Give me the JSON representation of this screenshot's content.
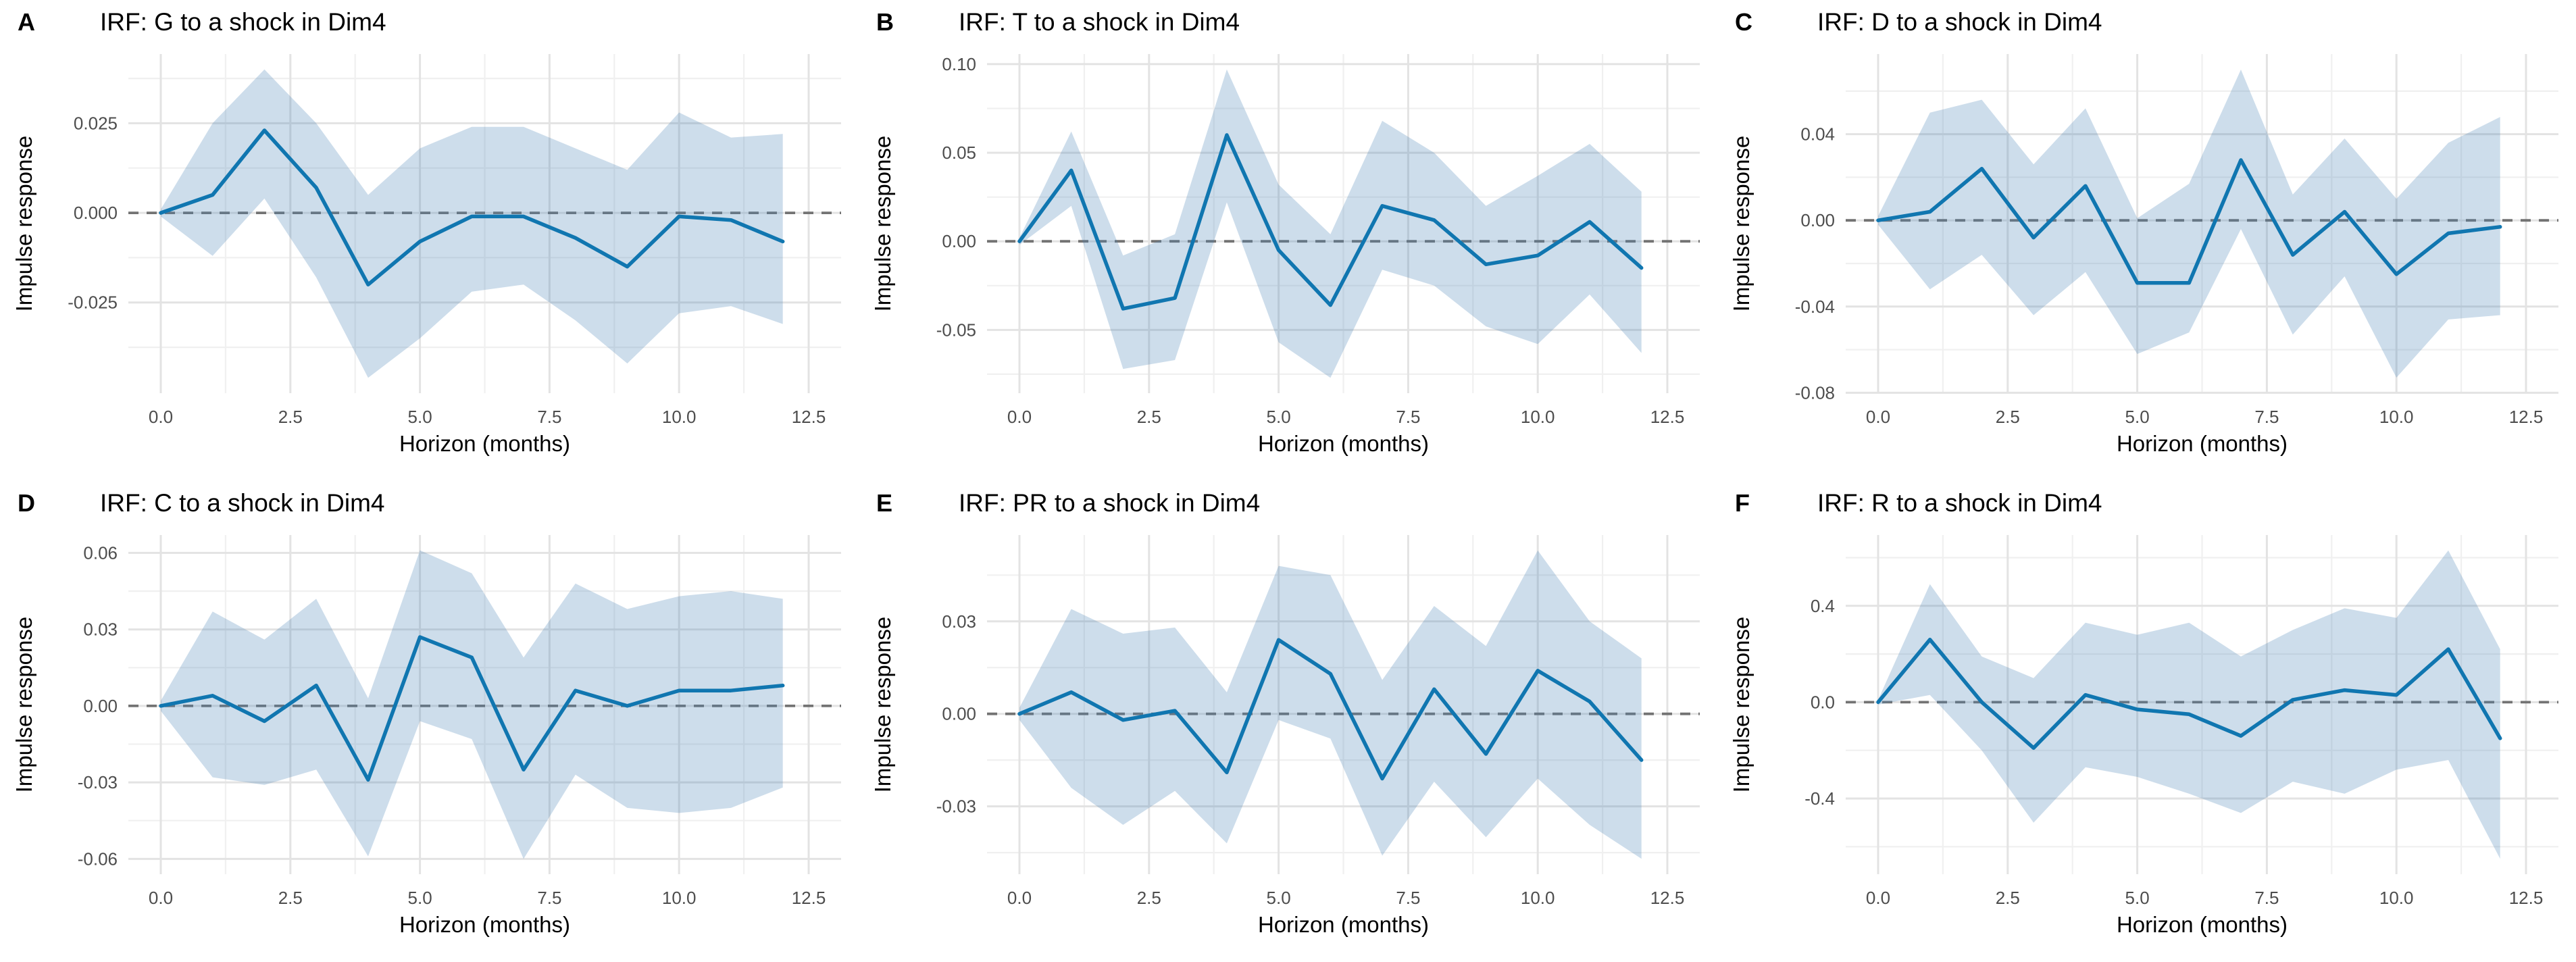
{
  "styles": {
    "line_color": "#1076b0",
    "band_fill": "rgba(70,130,180,0.27)",
    "zero_line_color": "#737373",
    "grid_major_color": "#e3e3e3",
    "grid_minor_color": "#f0f0f0",
    "tick_label_color": "#4d4d4d",
    "text_color": "#000000"
  },
  "chart_data": [
    {
      "letter": "A",
      "title": "IRF: G to a shock in Dim4",
      "type": "line",
      "xlabel": "Horizon (months)",
      "ylabel": "Impulse response",
      "x": [
        0,
        1,
        2,
        3,
        4,
        5,
        6,
        7,
        8,
        9,
        10,
        11,
        12
      ],
      "series": [
        {
          "name": "irf",
          "values": [
            0,
            0.005,
            0.023,
            0.007,
            -0.02,
            -0.008,
            -0.001,
            -0.001,
            -0.007,
            -0.015,
            -0.001,
            -0.002,
            -0.008
          ]
        },
        {
          "name": "upper_ci",
          "values": [
            0.001,
            0.025,
            0.04,
            0.025,
            0.005,
            0.018,
            0.024,
            0.024,
            0.018,
            0.012,
            0.028,
            0.021,
            0.022
          ]
        },
        {
          "name": "lower_ci",
          "values": [
            -0.001,
            -0.012,
            0.004,
            -0.018,
            -0.046,
            -0.035,
            -0.022,
            -0.02,
            -0.03,
            -0.042,
            -0.028,
            -0.026,
            -0.031
          ]
        }
      ],
      "xlim": [
        -0.625,
        13.125
      ],
      "ylim": [
        -0.0503,
        0.0443
      ],
      "x_ticks": [
        0,
        2.5,
        5,
        7.5,
        10,
        12.5
      ],
      "x_tick_labels": [
        "0.0",
        "2.5",
        "5.0",
        "7.5",
        "10.0",
        "12.5"
      ],
      "y_ticks": [
        0.025,
        0,
        -0.025
      ],
      "y_tick_labels": [
        "0.025",
        "0.000",
        "-0.025"
      ],
      "zero_line": true,
      "grid": "major+minor",
      "legend": "none"
    },
    {
      "letter": "B",
      "title": "IRF: T to a shock in Dim4",
      "type": "line",
      "xlabel": "Horizon (months)",
      "ylabel": "Impulse response",
      "x": [
        0,
        1,
        2,
        3,
        4,
        5,
        6,
        7,
        8,
        9,
        10,
        11,
        12
      ],
      "series": [
        {
          "name": "irf",
          "values": [
            0,
            0.04,
            -0.038,
            -0.032,
            0.06,
            -0.005,
            -0.036,
            0.02,
            0.012,
            -0.013,
            -0.008,
            0.011,
            -0.015
          ]
        },
        {
          "name": "upper_ci",
          "values": [
            0.002,
            0.062,
            -0.008,
            0.004,
            0.097,
            0.032,
            0.004,
            0.068,
            0.05,
            0.02,
            0.037,
            0.055,
            0.028
          ]
        },
        {
          "name": "lower_ci",
          "values": [
            -0.002,
            0.02,
            -0.072,
            -0.067,
            0.022,
            -0.057,
            -0.077,
            -0.016,
            -0.025,
            -0.048,
            -0.058,
            -0.03,
            -0.063
          ]
        }
      ],
      "xlim": [
        -0.625,
        13.125
      ],
      "ylim": [
        -0.0857,
        0.1057
      ],
      "x_ticks": [
        0,
        2.5,
        5,
        7.5,
        10,
        12.5
      ],
      "x_tick_labels": [
        "0.0",
        "2.5",
        "5.0",
        "7.5",
        "10.0",
        "12.5"
      ],
      "y_ticks": [
        0.1,
        0.05,
        0,
        -0.05
      ],
      "y_tick_labels": [
        "0.10",
        "0.05",
        "0.00",
        "-0.05"
      ],
      "zero_line": true,
      "grid": "major+minor",
      "legend": "none"
    },
    {
      "letter": "C",
      "title": "IRF: D to a shock in Dim4",
      "type": "line",
      "xlabel": "Horizon (months)",
      "ylabel": "Impulse response",
      "x": [
        0,
        1,
        2,
        3,
        4,
        5,
        6,
        7,
        8,
        9,
        10,
        11,
        12
      ],
      "series": [
        {
          "name": "irf",
          "values": [
            0,
            0.004,
            0.024,
            -0.008,
            0.016,
            -0.029,
            -0.029,
            0.028,
            -0.016,
            0.004,
            -0.025,
            -0.006,
            -0.003
          ]
        },
        {
          "name": "upper_ci",
          "values": [
            0.002,
            0.05,
            0.056,
            0.026,
            0.052,
            0.001,
            0.017,
            0.07,
            0.012,
            0.038,
            0.01,
            0.036,
            0.048
          ]
        },
        {
          "name": "lower_ci",
          "values": [
            -0.002,
            -0.032,
            -0.016,
            -0.044,
            -0.024,
            -0.062,
            -0.052,
            -0.004,
            -0.053,
            -0.026,
            -0.073,
            -0.046,
            -0.044
          ]
        }
      ],
      "xlim": [
        -0.625,
        13.125
      ],
      "ylim": [
        -0.0802,
        0.0772
      ],
      "x_ticks": [
        0,
        2.5,
        5,
        7.5,
        10,
        12.5
      ],
      "x_tick_labels": [
        "0.0",
        "2.5",
        "5.0",
        "7.5",
        "10.0",
        "12.5"
      ],
      "y_ticks": [
        0.04,
        0,
        -0.04,
        -0.08
      ],
      "y_tick_labels": [
        "0.04",
        "0.00",
        "-0.04",
        "-0.08"
      ],
      "zero_line": true,
      "grid": "major+minor",
      "legend": "none"
    },
    {
      "letter": "D",
      "title": "IRF: C to a shock in Dim4",
      "type": "line",
      "xlabel": "Horizon (months)",
      "ylabel": "Impulse response",
      "x": [
        0,
        1,
        2,
        3,
        4,
        5,
        6,
        7,
        8,
        9,
        10,
        11,
        12
      ],
      "series": [
        {
          "name": "irf",
          "values": [
            0,
            0.004,
            -0.006,
            0.008,
            -0.029,
            0.027,
            0.019,
            -0.025,
            0.006,
            0,
            0.006,
            0.006,
            0.008
          ]
        },
        {
          "name": "upper_ci",
          "values": [
            0.002,
            0.037,
            0.026,
            0.042,
            0.003,
            0.061,
            0.052,
            0.019,
            0.048,
            0.038,
            0.043,
            0.045,
            0.042
          ]
        },
        {
          "name": "lower_ci",
          "values": [
            -0.002,
            -0.028,
            -0.031,
            -0.025,
            -0.059,
            -0.006,
            -0.013,
            -0.06,
            -0.027,
            -0.04,
            -0.042,
            -0.04,
            -0.032
          ]
        }
      ],
      "xlim": [
        -0.625,
        13.125
      ],
      "ylim": [
        -0.066,
        0.067
      ],
      "x_ticks": [
        0,
        2.5,
        5,
        7.5,
        10,
        12.5
      ],
      "x_tick_labels": [
        "0.0",
        "2.5",
        "5.0",
        "7.5",
        "10.0",
        "12.5"
      ],
      "y_ticks": [
        0.06,
        0.03,
        0,
        -0.03,
        -0.06
      ],
      "y_tick_labels": [
        "0.06",
        "0.03",
        "0.00",
        "-0.03",
        "-0.06"
      ],
      "zero_line": true,
      "grid": "major+minor",
      "legend": "none"
    },
    {
      "letter": "E",
      "title": "IRF: PR to a shock in Dim4",
      "type": "line",
      "xlabel": "Horizon (months)",
      "ylabel": "Impulse response",
      "x": [
        0,
        1,
        2,
        3,
        4,
        5,
        6,
        7,
        8,
        9,
        10,
        11,
        12
      ],
      "series": [
        {
          "name": "irf",
          "values": [
            0,
            0.007,
            -0.002,
            0.001,
            -0.019,
            0.024,
            0.013,
            -0.021,
            0.008,
            -0.013,
            0.014,
            0.004,
            -0.015
          ]
        },
        {
          "name": "upper_ci",
          "values": [
            0.002,
            0.034,
            0.026,
            0.028,
            0.007,
            0.048,
            0.045,
            0.011,
            0.035,
            0.022,
            0.053,
            0.03,
            0.018
          ]
        },
        {
          "name": "lower_ci",
          "values": [
            -0.002,
            -0.024,
            -0.036,
            -0.025,
            -0.042,
            -0.002,
            -0.008,
            -0.046,
            -0.022,
            -0.04,
            -0.021,
            -0.036,
            -0.047
          ]
        }
      ],
      "xlim": [
        -0.625,
        13.125
      ],
      "ylim": [
        -0.052,
        0.058
      ],
      "x_ticks": [
        0,
        2.5,
        5,
        7.5,
        10,
        12.5
      ],
      "x_tick_labels": [
        "0.0",
        "2.5",
        "5.0",
        "7.5",
        "10.0",
        "12.5"
      ],
      "y_ticks": [
        0.03,
        0,
        -0.03
      ],
      "y_tick_labels": [
        "0.03",
        "0.00",
        "-0.03"
      ],
      "zero_line": true,
      "grid": "major+minor",
      "legend": "none"
    },
    {
      "letter": "F",
      "title": "IRF: R to a shock in Dim4",
      "type": "line",
      "xlabel": "Horizon (months)",
      "ylabel": "Impulse response",
      "x": [
        0,
        1,
        2,
        3,
        4,
        5,
        6,
        7,
        8,
        9,
        10,
        11,
        12
      ],
      "series": [
        {
          "name": "irf",
          "values": [
            0,
            0.26,
            0,
            -0.19,
            0.03,
            -0.03,
            -0.05,
            -0.14,
            0.01,
            0.05,
            0.03,
            0.22,
            -0.15
          ]
        },
        {
          "name": "upper_ci",
          "values": [
            0.01,
            0.49,
            0.19,
            0.1,
            0.33,
            0.28,
            0.33,
            0.19,
            0.3,
            0.39,
            0.35,
            0.63,
            0.22
          ]
        },
        {
          "name": "lower_ci",
          "values": [
            -0.01,
            0.03,
            -0.2,
            -0.5,
            -0.27,
            -0.31,
            -0.38,
            -0.46,
            -0.33,
            -0.38,
            -0.28,
            -0.24,
            -0.65
          ]
        }
      ],
      "xlim": [
        -0.625,
        13.125
      ],
      "ylim": [
        -0.714,
        0.694
      ],
      "x_ticks": [
        0,
        2.5,
        5,
        7.5,
        10,
        12.5
      ],
      "x_tick_labels": [
        "0.0",
        "2.5",
        "5.0",
        "7.5",
        "10.0",
        "12.5"
      ],
      "y_ticks": [
        0.4,
        0,
        -0.4
      ],
      "y_tick_labels": [
        "0.4",
        "0.0",
        "-0.4"
      ],
      "zero_line": true,
      "grid": "major+minor",
      "legend": "none"
    }
  ]
}
